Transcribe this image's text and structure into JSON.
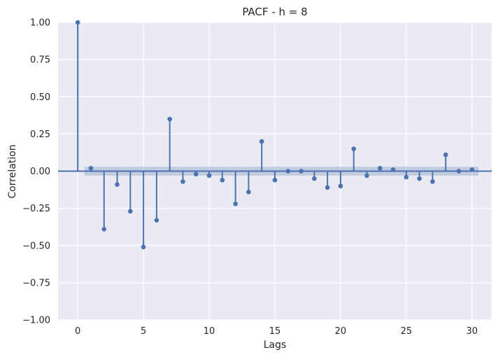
{
  "chart_data": {
    "type": "stem",
    "title": "PACF - h = 8",
    "xlabel": "Lags",
    "ylabel": "Correlation",
    "xlim": [
      -1.5,
      31.5
    ],
    "ylim": [
      -1.0,
      1.0
    ],
    "xticks": [
      0,
      5,
      10,
      15,
      20,
      25,
      30
    ],
    "yticks": [
      -1.0,
      -0.75,
      -0.5,
      -0.25,
      0.0,
      0.25,
      0.5,
      0.75,
      1.0
    ],
    "ytick_labels": [
      "−1.00",
      "−0.75",
      "−0.50",
      "−0.25",
      "0.00",
      "0.25",
      "0.50",
      "0.75",
      "1.00"
    ],
    "grid": true,
    "confidence_band": [
      -0.03,
      0.03
    ],
    "x": [
      0,
      1,
      2,
      3,
      4,
      5,
      6,
      7,
      8,
      9,
      10,
      11,
      12,
      13,
      14,
      15,
      16,
      17,
      18,
      19,
      20,
      21,
      22,
      23,
      24,
      25,
      26,
      27,
      28,
      29,
      30
    ],
    "values": [
      1.0,
      0.02,
      -0.39,
      -0.09,
      -0.27,
      -0.51,
      -0.33,
      0.35,
      -0.07,
      -0.02,
      -0.03,
      -0.06,
      -0.22,
      -0.14,
      0.2,
      -0.06,
      0.0,
      0.0,
      -0.05,
      -0.11,
      -0.1,
      0.15,
      -0.03,
      0.02,
      0.01,
      -0.04,
      -0.05,
      -0.07,
      0.11,
      0.0,
      0.01
    ],
    "colors": {
      "series": "#4c72b0",
      "band": "#4c72b0",
      "background": "#eaeaf2",
      "grid": "#ffffff"
    }
  }
}
